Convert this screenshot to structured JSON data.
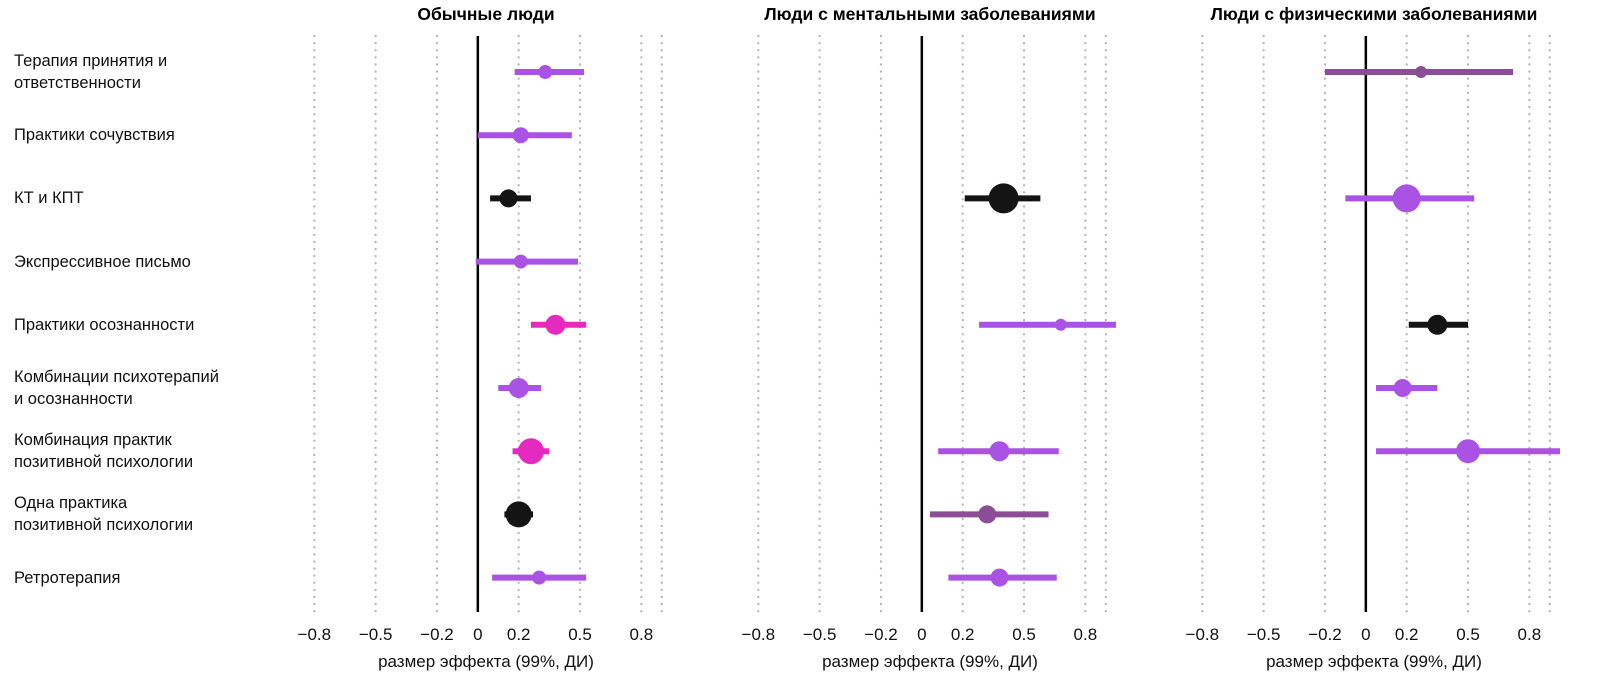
{
  "chart_data": {
    "type": "scatter",
    "subtype": "forest-plot",
    "xlabel": "размер эффекта (99%, ДИ)",
    "x_domain": [
      -0.87,
      0.95
    ],
    "x_ticks": {
      "values": [
        -0.8,
        -0.5,
        -0.2,
        0,
        0.2,
        0.5,
        0.8
      ],
      "labels": [
        "−0.8",
        "−0.5",
        "−0.2",
        "0",
        "0.2",
        "0.5",
        "0.8"
      ]
    },
    "extra_gridline": 0.9,
    "grid": "dotted",
    "categories": [
      "Терапия принятия и\nответственности",
      "Практики сочувствия",
      "КТ и КПТ",
      "Экспрессивное письмо",
      "Практики осознанности",
      "Комбинации психотерапий\nи осознанности",
      "Комбинация практик\nпозитивной психологии",
      "Одна практика\nпозитивной психологии",
      "Ретротерапия"
    ],
    "colors": {
      "purple": "#a952e3",
      "magenta": "#e52bbf",
      "plum": "#8a4d96",
      "black": "#141414",
      "gridline": "#b6aec0",
      "zero_line": "#000000"
    },
    "panels": [
      {
        "title": "Обычные люди",
        "points": [
          {
            "category_index": 0,
            "estimate": 0.33,
            "ci_low": 0.18,
            "ci_high": 0.52,
            "color": "purple",
            "size": 7
          },
          {
            "category_index": 1,
            "estimate": 0.21,
            "ci_low": 0.0,
            "ci_high": 0.46,
            "color": "purple",
            "size": 8
          },
          {
            "category_index": 2,
            "estimate": 0.15,
            "ci_low": 0.06,
            "ci_high": 0.26,
            "color": "black",
            "size": 9
          },
          {
            "category_index": 3,
            "estimate": 0.21,
            "ci_low": -0.01,
            "ci_high": 0.49,
            "color": "purple",
            "size": 7
          },
          {
            "category_index": 4,
            "estimate": 0.38,
            "ci_low": 0.26,
            "ci_high": 0.53,
            "color": "magenta",
            "size": 10
          },
          {
            "category_index": 5,
            "estimate": 0.2,
            "ci_low": 0.1,
            "ci_high": 0.31,
            "color": "purple",
            "size": 10
          },
          {
            "category_index": 6,
            "estimate": 0.26,
            "ci_low": 0.17,
            "ci_high": 0.35,
            "color": "magenta",
            "size": 13
          },
          {
            "category_index": 7,
            "estimate": 0.2,
            "ci_low": 0.13,
            "ci_high": 0.27,
            "color": "black",
            "size": 13
          },
          {
            "category_index": 8,
            "estimate": 0.3,
            "ci_low": 0.07,
            "ci_high": 0.53,
            "color": "purple",
            "size": 7
          }
        ]
      },
      {
        "title": "Люди с ментальными заболеваниями",
        "points": [
          {
            "category_index": 2,
            "estimate": 0.4,
            "ci_low": 0.21,
            "ci_high": 0.58,
            "color": "black",
            "size": 15
          },
          {
            "category_index": 4,
            "estimate": 0.68,
            "ci_low": 0.28,
            "ci_high": 1.08,
            "color": "purple",
            "size": 6
          },
          {
            "category_index": 6,
            "estimate": 0.38,
            "ci_low": 0.08,
            "ci_high": 0.67,
            "color": "purple",
            "size": 10
          },
          {
            "category_index": 7,
            "estimate": 0.32,
            "ci_low": 0.04,
            "ci_high": 0.62,
            "color": "plum",
            "size": 9
          },
          {
            "category_index": 8,
            "estimate": 0.38,
            "ci_low": 0.13,
            "ci_high": 0.66,
            "color": "purple",
            "size": 9
          }
        ]
      },
      {
        "title": "Люди с физическими заболеваниями",
        "points": [
          {
            "category_index": 0,
            "estimate": 0.27,
            "ci_low": -0.2,
            "ci_high": 0.72,
            "color": "plum",
            "size": 6
          },
          {
            "category_index": 2,
            "estimate": 0.2,
            "ci_low": -0.1,
            "ci_high": 0.53,
            "color": "purple",
            "size": 14
          },
          {
            "category_index": 4,
            "estimate": 0.35,
            "ci_low": 0.21,
            "ci_high": 0.5,
            "color": "black",
            "size": 10
          },
          {
            "category_index": 5,
            "estimate": 0.18,
            "ci_low": 0.05,
            "ci_high": 0.35,
            "color": "purple",
            "size": 9
          },
          {
            "category_index": 6,
            "estimate": 0.5,
            "ci_low": 0.05,
            "ci_high": 1.1,
            "color": "purple",
            "size": 12
          }
        ]
      }
    ]
  }
}
